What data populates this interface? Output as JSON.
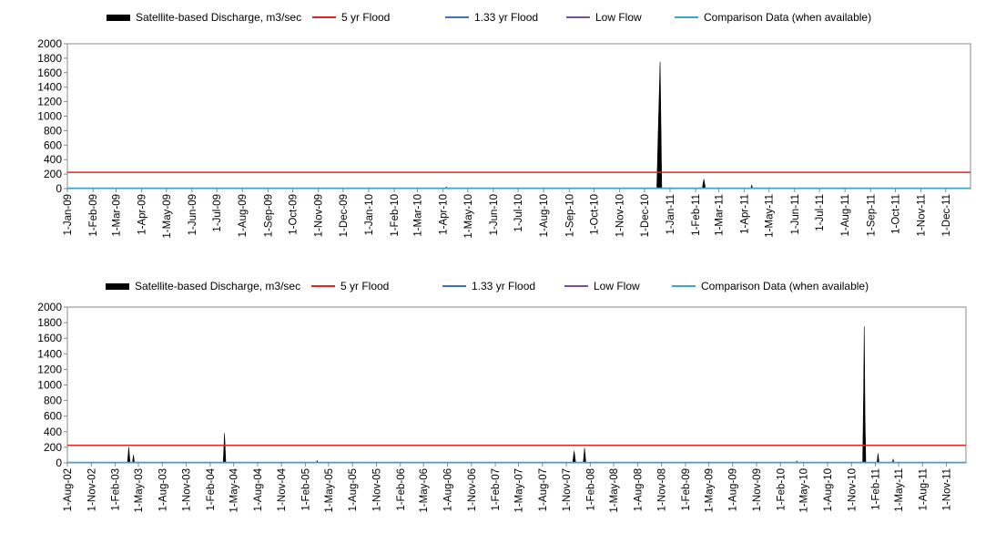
{
  "colors": {
    "discharge": "#000000",
    "flood5": "#e0241f",
    "flood133": "#3f6fc2",
    "lowflow": "#7a4fa0",
    "comparison": "#3aa6c9"
  },
  "chart_data": [
    {
      "type": "area",
      "legend": [
        {
          "name": "Satellite-based Discharge, m3/sec",
          "style": "area",
          "color": "#000000"
        },
        {
          "name": "5 yr Flood",
          "style": "line",
          "color": "#e0241f"
        },
        {
          "name": "1.33 yr Flood",
          "style": "line",
          "color": "#3f6fc2"
        },
        {
          "name": "Low Flow",
          "style": "line",
          "color": "#7a4fa0"
        },
        {
          "name": "Comparison Data (when available)",
          "style": "line",
          "color": "#3aa6c9"
        }
      ],
      "legend_position": "top",
      "ylim": [
        0,
        2000
      ],
      "yticks": [
        0,
        200,
        400,
        600,
        800,
        1000,
        1200,
        1400,
        1600,
        1800,
        2000
      ],
      "xlim": [
        "2009-01-01",
        "2011-12-31"
      ],
      "xtick_labels": [
        "1-Jan-09",
        "1-Feb-09",
        "1-Mar-09",
        "1-Apr-09",
        "1-May-09",
        "1-Jun-09",
        "1-Jul-09",
        "1-Aug-09",
        "1-Sep-09",
        "1-Oct-09",
        "1-Nov-09",
        "1-Dec-09",
        "1-Jan-10",
        "1-Feb-10",
        "1-Mar-10",
        "1-Apr-10",
        "1-May-10",
        "1-Jun-10",
        "1-Jul-10",
        "1-Aug-10",
        "1-Sep-10",
        "1-Oct-10",
        "1-Nov-10",
        "1-Dec-10",
        "1-Jan-11",
        "1-Feb-11",
        "1-Mar-11",
        "1-Apr-11",
        "1-May-11",
        "1-Jun-11",
        "1-Jul-11",
        "1-Aug-11",
        "1-Sep-11",
        "1-Oct-11",
        "1-Nov-11",
        "1-Dec-11"
      ],
      "xtick_dates": [
        "2009-01-01",
        "2009-02-01",
        "2009-03-01",
        "2009-04-01",
        "2009-05-01",
        "2009-06-01",
        "2009-07-01",
        "2009-08-01",
        "2009-09-01",
        "2009-10-01",
        "2009-11-01",
        "2009-12-01",
        "2010-01-01",
        "2010-02-01",
        "2010-03-01",
        "2010-04-01",
        "2010-05-01",
        "2010-06-01",
        "2010-07-01",
        "2010-08-01",
        "2010-09-01",
        "2010-10-01",
        "2010-11-01",
        "2010-12-01",
        "2011-01-01",
        "2011-02-01",
        "2011-03-01",
        "2011-04-01",
        "2011-05-01",
        "2011-06-01",
        "2011-07-01",
        "2011-08-01",
        "2011-09-01",
        "2011-10-01",
        "2011-11-01",
        "2011-12-01"
      ],
      "flood5": 225,
      "flood133": 5,
      "lowflow": 0,
      "discharge": [
        {
          "x": "2010-04-04",
          "y": 0
        },
        {
          "x": "2010-04-05",
          "y": 25
        },
        {
          "x": "2010-04-06",
          "y": 0
        },
        {
          "x": "2010-12-16",
          "y": 0
        },
        {
          "x": "2010-12-18",
          "y": 900
        },
        {
          "x": "2010-12-20",
          "y": 1750
        },
        {
          "x": "2010-12-21",
          "y": 900
        },
        {
          "x": "2010-12-22",
          "y": 0
        },
        {
          "x": "2011-02-09",
          "y": 0
        },
        {
          "x": "2011-02-11",
          "y": 130
        },
        {
          "x": "2011-02-13",
          "y": 0
        },
        {
          "x": "2011-04-09",
          "y": 0
        },
        {
          "x": "2011-04-10",
          "y": 50
        },
        {
          "x": "2011-04-11",
          "y": 0
        }
      ]
    },
    {
      "type": "area",
      "legend": [
        {
          "name": "Satellite-based Discharge, m3/sec",
          "style": "area",
          "color": "#000000"
        },
        {
          "name": "5 yr Flood",
          "style": "line",
          "color": "#e0241f"
        },
        {
          "name": "1.33 yr Flood",
          "style": "line",
          "color": "#3f6fc2"
        },
        {
          "name": "Low Flow",
          "style": "line",
          "color": "#7a4fa0"
        },
        {
          "name": "Comparison Data (when available)",
          "style": "line",
          "color": "#3aa6c9"
        }
      ],
      "legend_position": "top",
      "ylim": [
        0,
        2000
      ],
      "yticks": [
        0,
        200,
        400,
        600,
        800,
        1000,
        1200,
        1400,
        1600,
        1800,
        2000
      ],
      "xlim": [
        "2002-08-01",
        "2012-01-15"
      ],
      "xtick_labels": [
        "1-Aug-02",
        "1-Nov-02",
        "1-Feb-03",
        "1-May-03",
        "1-Aug-03",
        "1-Nov-03",
        "1-Feb-04",
        "1-May-04",
        "1-Aug-04",
        "1-Nov-04",
        "1-Feb-05",
        "1-May-05",
        "1-Aug-05",
        "1-Nov-05",
        "1-Feb-06",
        "1-May-06",
        "1-Aug-06",
        "1-Nov-06",
        "1-Feb-07",
        "1-May-07",
        "1-Aug-07",
        "1-Nov-07",
        "1-Feb-08",
        "1-May-08",
        "1-Aug-08",
        "1-Nov-08",
        "1-Feb-09",
        "1-May-09",
        "1-Aug-09",
        "1-Nov-09",
        "1-Feb-10",
        "1-May-10",
        "1-Aug-10",
        "1-Nov-10",
        "1-Feb-11",
        "1-May-11",
        "1-Aug-11",
        "1-Nov-11"
      ],
      "xtick_dates": [
        "2002-08-01",
        "2002-11-01",
        "2003-02-01",
        "2003-05-01",
        "2003-08-01",
        "2003-11-01",
        "2004-02-01",
        "2004-05-01",
        "2004-08-01",
        "2004-11-01",
        "2005-02-01",
        "2005-05-01",
        "2005-08-01",
        "2005-11-01",
        "2006-02-01",
        "2006-05-01",
        "2006-08-01",
        "2006-11-01",
        "2007-02-01",
        "2007-05-01",
        "2007-08-01",
        "2007-11-01",
        "2008-02-01",
        "2008-05-01",
        "2008-08-01",
        "2008-11-01",
        "2009-02-01",
        "2009-05-01",
        "2009-08-01",
        "2009-11-01",
        "2010-02-01",
        "2010-05-01",
        "2010-08-01",
        "2010-11-01",
        "2011-02-01",
        "2011-05-01",
        "2011-08-01",
        "2011-11-01"
      ],
      "flood5": 225,
      "flood133": 5,
      "lowflow": 0,
      "discharge": [
        {
          "x": "2003-03-20",
          "y": 0
        },
        {
          "x": "2003-03-25",
          "y": 200
        },
        {
          "x": "2003-03-30",
          "y": 0
        },
        {
          "x": "2003-04-08",
          "y": 0
        },
        {
          "x": "2003-04-12",
          "y": 100
        },
        {
          "x": "2003-04-16",
          "y": 0
        },
        {
          "x": "2004-03-22",
          "y": 0
        },
        {
          "x": "2004-03-27",
          "y": 380
        },
        {
          "x": "2004-04-01",
          "y": 0
        },
        {
          "x": "2005-03-15",
          "y": 0
        },
        {
          "x": "2005-03-18",
          "y": 30
        },
        {
          "x": "2005-03-21",
          "y": 0
        },
        {
          "x": "2007-11-25",
          "y": 0
        },
        {
          "x": "2007-12-01",
          "y": 150
        },
        {
          "x": "2007-12-07",
          "y": 0
        },
        {
          "x": "2008-01-05",
          "y": 0
        },
        {
          "x": "2008-01-10",
          "y": 190
        },
        {
          "x": "2008-01-15",
          "y": 0
        },
        {
          "x": "2010-04-02",
          "y": 0
        },
        {
          "x": "2010-04-05",
          "y": 25
        },
        {
          "x": "2010-04-08",
          "y": 0
        },
        {
          "x": "2010-12-14",
          "y": 0
        },
        {
          "x": "2010-12-18",
          "y": 1000
        },
        {
          "x": "2010-12-20",
          "y": 1750
        },
        {
          "x": "2010-12-23",
          "y": 600
        },
        {
          "x": "2010-12-26",
          "y": 0
        },
        {
          "x": "2011-02-07",
          "y": 0
        },
        {
          "x": "2011-02-11",
          "y": 120
        },
        {
          "x": "2011-02-15",
          "y": 0
        },
        {
          "x": "2011-04-07",
          "y": 0
        },
        {
          "x": "2011-04-10",
          "y": 50
        },
        {
          "x": "2011-04-13",
          "y": 0
        }
      ]
    }
  ]
}
